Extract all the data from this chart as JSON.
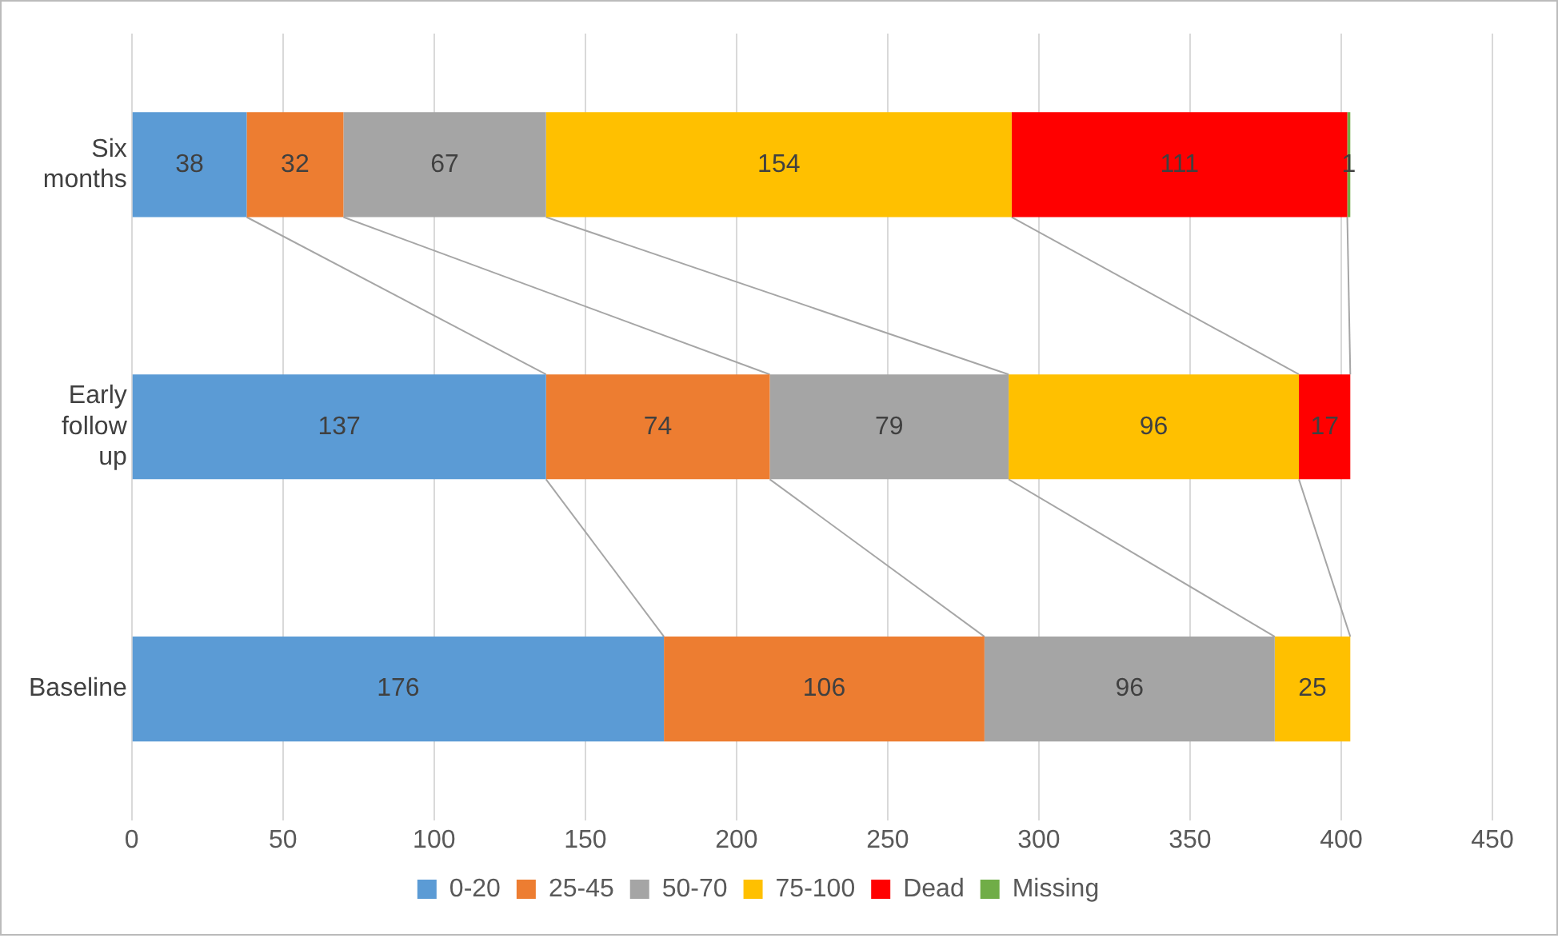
{
  "chart_data": {
    "type": "bar",
    "orientation": "horizontal",
    "stacked": true,
    "categories": [
      "Six months",
      "Early follow up",
      "Baseline"
    ],
    "series": [
      {
        "name": "0-20",
        "color": "#5b9bd5",
        "values": [
          38,
          137,
          176
        ]
      },
      {
        "name": "25-45",
        "color": "#ed7d31",
        "values": [
          32,
          74,
          106
        ]
      },
      {
        "name": "50-70",
        "color": "#a5a5a5",
        "values": [
          67,
          79,
          96
        ]
      },
      {
        "name": "75-100",
        "color": "#ffc000",
        "values": [
          154,
          96,
          25
        ]
      },
      {
        "name": "Dead",
        "color": "#ff0000",
        "values": [
          111,
          17,
          null
        ]
      },
      {
        "name": "Missing",
        "color": "#70ad47",
        "values": [
          1,
          null,
          null
        ]
      }
    ],
    "xlim": [
      0,
      450
    ],
    "xticks": [
      0,
      50,
      100,
      150,
      200,
      250,
      300,
      350,
      400,
      450
    ],
    "grid": "x",
    "legend": "bottom",
    "data_labels": true
  }
}
